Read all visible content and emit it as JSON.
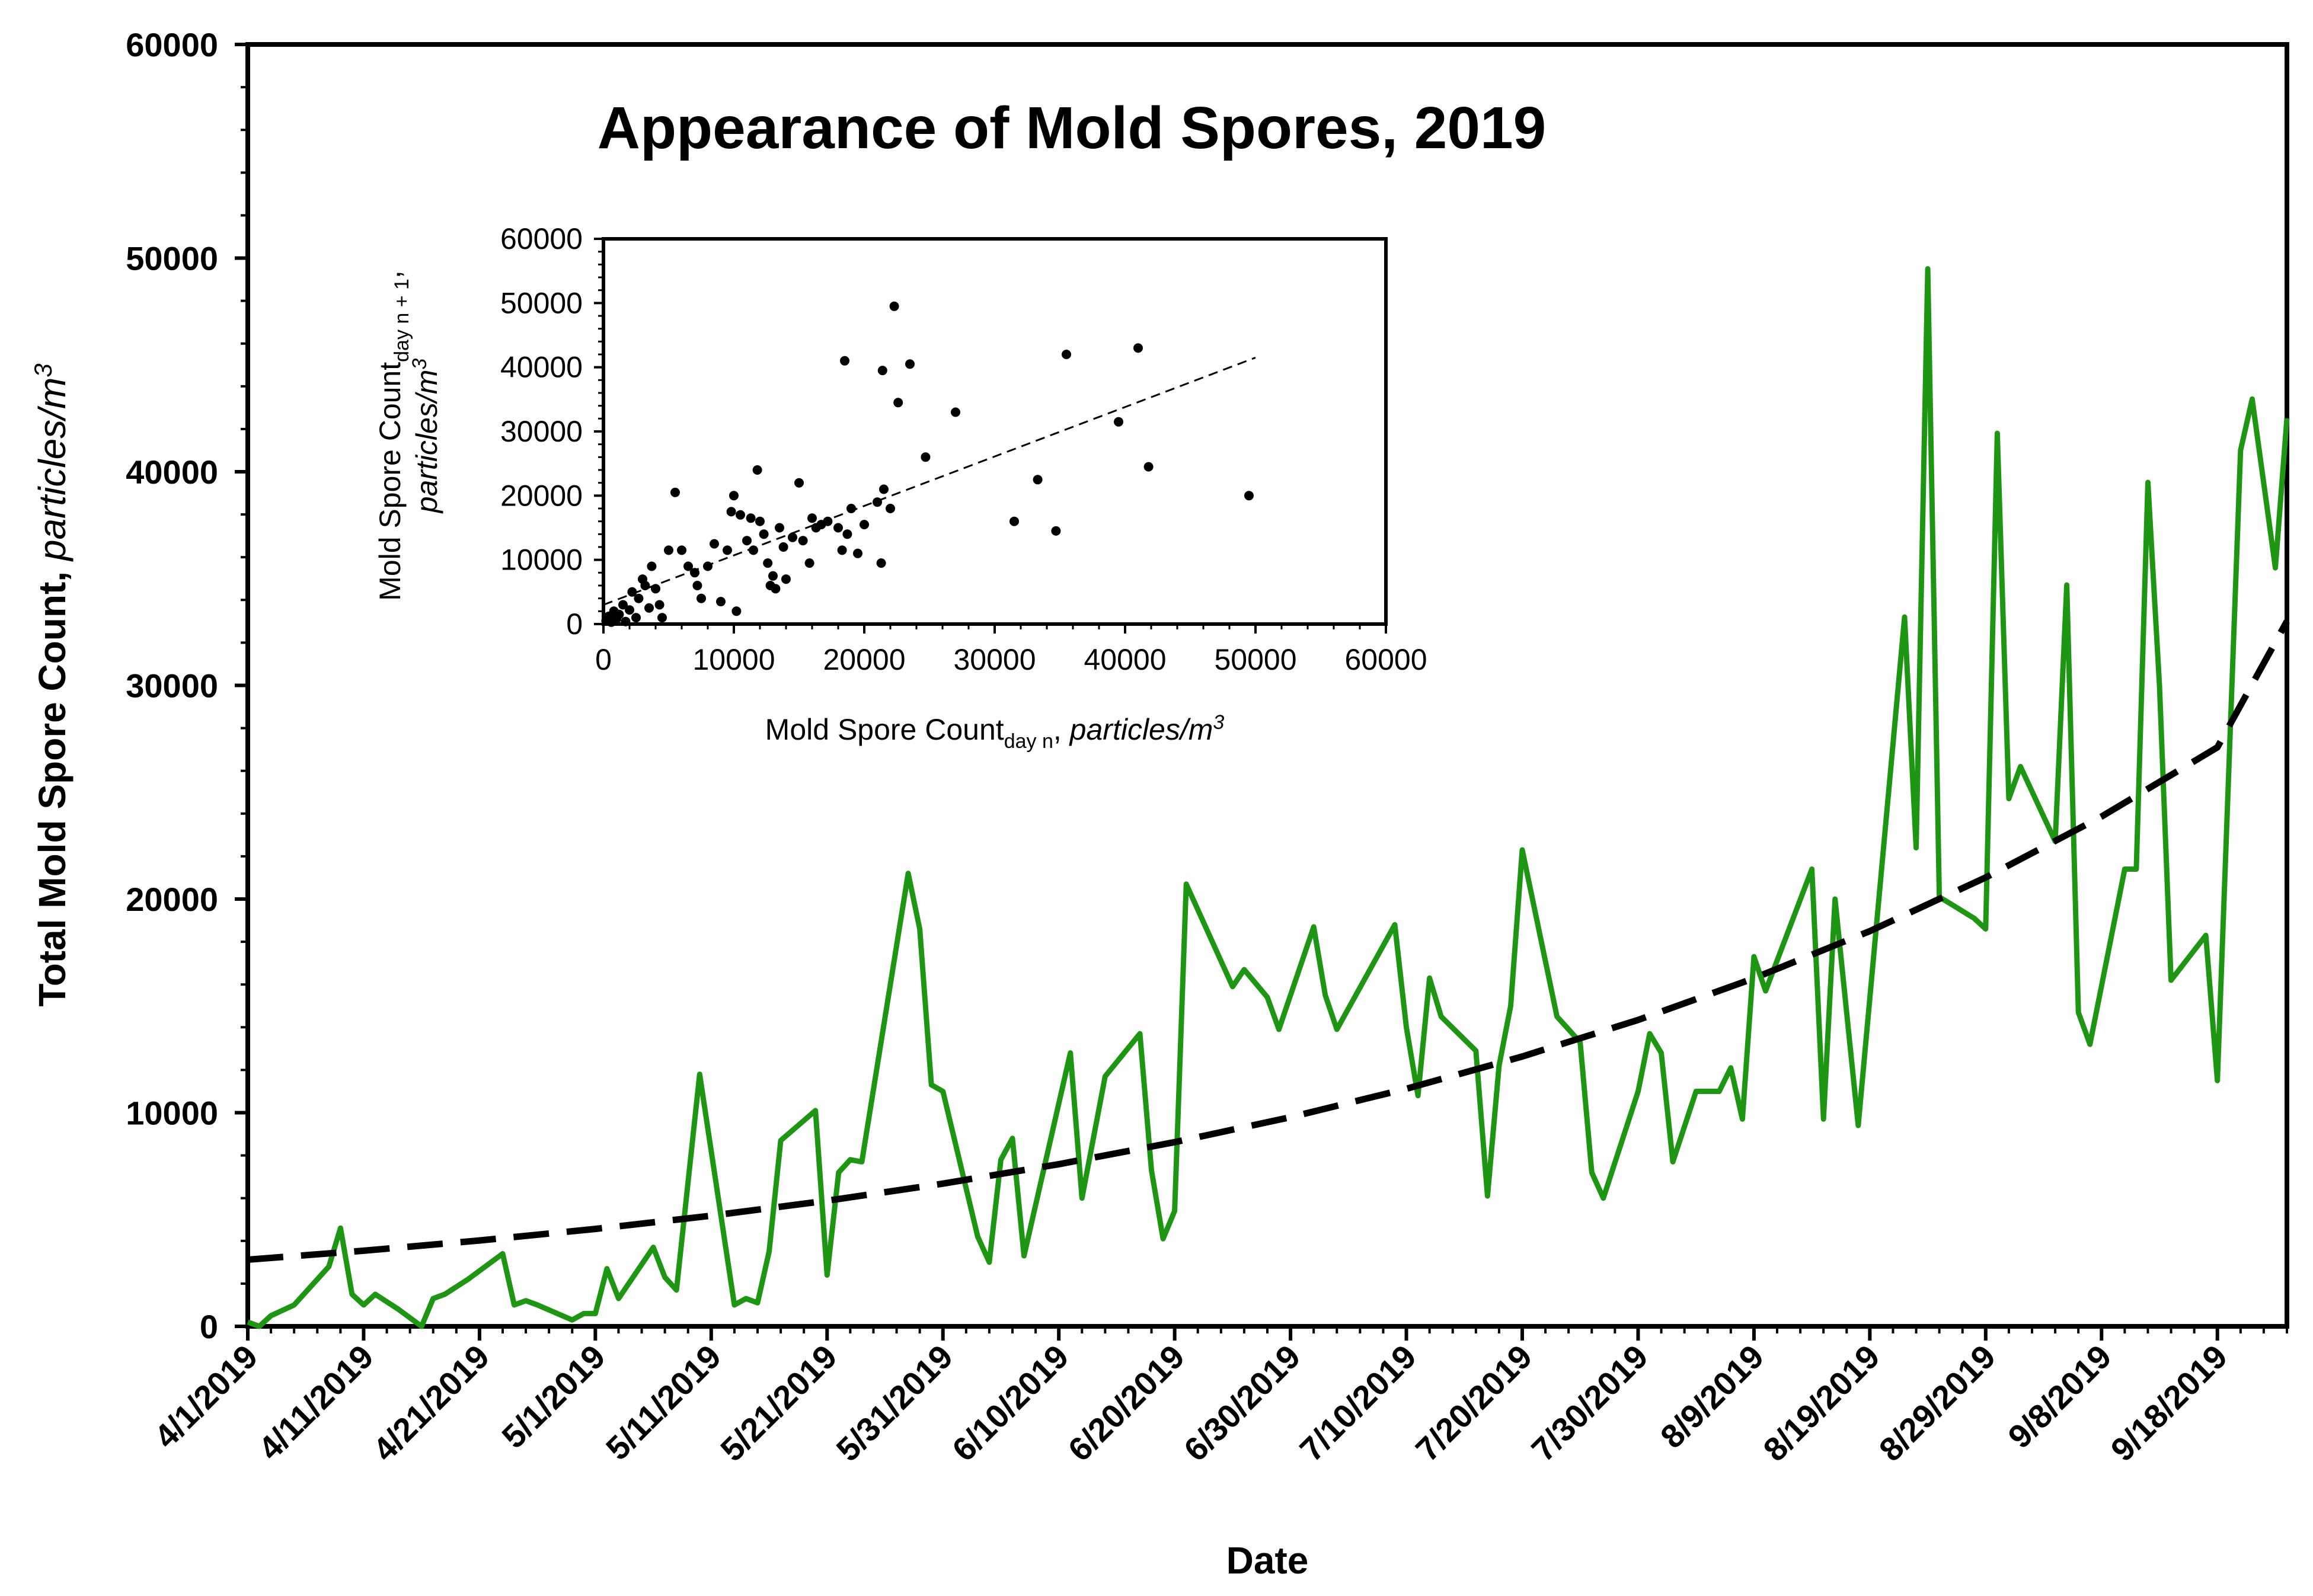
{
  "chart_data": [
    {
      "type": "line",
      "title": "Appearance of Mold Spores, 2019",
      "xlabel": "Date",
      "ylabel": "Total Mold Spore Count,",
      "ylabel_unit": "particles/m",
      "ylabel_unit_sup": "3",
      "ylim": [
        0,
        60000
      ],
      "yticks": [
        "0",
        "10000",
        "20000",
        "30000",
        "40000",
        "50000",
        "60000"
      ],
      "xlim": [
        "2019-04-01",
        "2019-09-24"
      ],
      "xticks": [
        "4/1/2019",
        "4/11/2019",
        "4/21/2019",
        "5/1/2019",
        "5/11/2019",
        "5/21/2019",
        "5/31/2019",
        "6/10/2019",
        "6/20/2019",
        "6/30/2019",
        "7/10/2019",
        "7/20/2019",
        "7/30/2019",
        "8/9/2019",
        "8/19/2019",
        "8/29/2019",
        "9/8/2019",
        "9/18/2019"
      ],
      "grid": false,
      "colors": {
        "series": "#1e9614",
        "trend": "#000000",
        "axis": "#000000"
      },
      "series": [
        {
          "style": "solid",
          "points": [
            [
              "2019-04-01",
              200
            ],
            [
              "2019-04-02",
              0
            ],
            [
              "2019-04-03",
              500
            ],
            [
              "2019-04-05",
              1000
            ],
            [
              "2019-04-08",
              2800
            ],
            [
              "2019-04-09",
              4600
            ],
            [
              "2019-04-10",
              1500
            ],
            [
              "2019-04-11",
              1000
            ],
            [
              "2019-04-12",
              1500
            ],
            [
              "2019-04-14",
              800
            ],
            [
              "2019-04-16",
              0
            ],
            [
              "2019-04-17",
              1300
            ],
            [
              "2019-04-18",
              1500
            ],
            [
              "2019-04-20",
              2200
            ],
            [
              "2019-04-23",
              3400
            ],
            [
              "2019-04-24",
              1000
            ],
            [
              "2019-04-25",
              1200
            ],
            [
              "2019-04-26",
              1000
            ],
            [
              "2019-04-29",
              300
            ],
            [
              "2019-04-30",
              600
            ],
            [
              "2019-05-01",
              600
            ],
            [
              "2019-05-02",
              2700
            ],
            [
              "2019-05-03",
              1300
            ],
            [
              "2019-05-06",
              3700
            ],
            [
              "2019-05-07",
              2300
            ],
            [
              "2019-05-08",
              1700
            ],
            [
              "2019-05-10",
              11800
            ],
            [
              "2019-05-13",
              1000
            ],
            [
              "2019-05-14",
              1300
            ],
            [
              "2019-05-15",
              1100
            ],
            [
              "2019-05-16",
              3500
            ],
            [
              "2019-05-17",
              8700
            ],
            [
              "2019-05-20",
              10100
            ],
            [
              "2019-05-21",
              2400
            ],
            [
              "2019-05-22",
              7200
            ],
            [
              "2019-05-23",
              7800
            ],
            [
              "2019-05-24",
              7700
            ],
            [
              "2019-05-28",
              21200
            ],
            [
              "2019-05-29",
              18600
            ],
            [
              "2019-05-30",
              11300
            ],
            [
              "2019-05-31",
              11000
            ],
            [
              "2019-06-03",
              4200
            ],
            [
              "2019-06-04",
              3000
            ],
            [
              "2019-06-05",
              7800
            ],
            [
              "2019-06-06",
              8800
            ],
            [
              "2019-06-07",
              3300
            ],
            [
              "2019-06-11",
              12800
            ],
            [
              "2019-06-12",
              6000
            ],
            [
              "2019-06-14",
              11700
            ],
            [
              "2019-06-17",
              13700
            ],
            [
              "2019-06-18",
              7300
            ],
            [
              "2019-06-19",
              4100
            ],
            [
              "2019-06-20",
              5400
            ],
            [
              "2019-06-21",
              20700
            ],
            [
              "2019-06-25",
              15900
            ],
            [
              "2019-06-26",
              16700
            ],
            [
              "2019-06-28",
              15400
            ],
            [
              "2019-06-29",
              13900
            ],
            [
              "2019-07-02",
              18700
            ],
            [
              "2019-07-03",
              15500
            ],
            [
              "2019-07-04",
              13900
            ],
            [
              "2019-07-09",
              18800
            ],
            [
              "2019-07-10",
              14000
            ],
            [
              "2019-07-11",
              10800
            ],
            [
              "2019-07-12",
              16300
            ],
            [
              "2019-07-13",
              14500
            ],
            [
              "2019-07-16",
              12900
            ],
            [
              "2019-07-17",
              6100
            ],
            [
              "2019-07-18",
              12200
            ],
            [
              "2019-07-19",
              15000
            ],
            [
              "2019-07-20",
              22300
            ],
            [
              "2019-07-23",
              14500
            ],
            [
              "2019-07-25",
              13300
            ],
            [
              "2019-07-26",
              7200
            ],
            [
              "2019-07-27",
              6000
            ],
            [
              "2019-07-30",
              11000
            ],
            [
              "2019-07-31",
              13700
            ],
            [
              "2019-08-01",
              12800
            ],
            [
              "2019-08-02",
              7700
            ],
            [
              "2019-08-04",
              11000
            ],
            [
              "2019-08-06",
              11000
            ],
            [
              "2019-08-07",
              12100
            ],
            [
              "2019-08-08",
              9700
            ],
            [
              "2019-08-09",
              17300
            ],
            [
              "2019-08-10",
              15700
            ],
            [
              "2019-08-14",
              21400
            ],
            [
              "2019-08-15",
              9700
            ],
            [
              "2019-08-16",
              20000
            ],
            [
              "2019-08-18",
              9400
            ],
            [
              "2019-08-22",
              33200
            ],
            [
              "2019-08-23",
              22400
            ],
            [
              "2019-08-24",
              49500
            ],
            [
              "2019-08-25",
              20100
            ],
            [
              "2019-08-28",
              19100
            ],
            [
              "2019-08-29",
              18600
            ],
            [
              "2019-08-30",
              41800
            ],
            [
              "2019-08-31",
              24700
            ],
            [
              "2019-09-01",
              26200
            ],
            [
              "2019-09-04",
              22700
            ],
            [
              "2019-09-05",
              34700
            ],
            [
              "2019-09-06",
              14700
            ],
            [
              "2019-09-07",
              13200
            ],
            [
              "2019-09-10",
              21400
            ],
            [
              "2019-09-11",
              21400
            ],
            [
              "2019-09-12",
              39500
            ],
            [
              "2019-09-13",
              30000
            ],
            [
              "2019-09-14",
              16200
            ],
            [
              "2019-09-17",
              18300
            ],
            [
              "2019-09-18",
              11500
            ],
            [
              "2019-09-20",
              41000
            ],
            [
              "2019-09-21",
              43400
            ],
            [
              "2019-09-23",
              35500
            ],
            [
              "2019-09-24",
              42500
            ]
          ]
        },
        {
          "style": "dashed",
          "points": [
            [
              "2019-04-01",
              3120
            ],
            [
              "2019-04-11",
              3540
            ],
            [
              "2019-04-21",
              4020
            ],
            [
              "2019-05-01",
              4560
            ],
            [
              "2019-05-11",
              5180
            ],
            [
              "2019-05-21",
              5880
            ],
            [
              "2019-05-31",
              6680
            ],
            [
              "2019-06-10",
              7590
            ],
            [
              "2019-06-20",
              8620
            ],
            [
              "2019-06-30",
              9790
            ],
            [
              "2019-07-10",
              11120
            ],
            [
              "2019-07-20",
              12630
            ],
            [
              "2019-07-30",
              14340
            ],
            [
              "2019-08-09",
              16290
            ],
            [
              "2019-08-19",
              18500
            ],
            [
              "2019-08-29",
              21010
            ],
            [
              "2019-09-08",
              23860
            ],
            [
              "2019-09-18",
              27100
            ],
            [
              "2019-09-24",
              33000
            ]
          ]
        }
      ]
    },
    {
      "type": "scatter",
      "xlabel": "Mold Spore Count",
      "xlabel_sub": "day n",
      "xlabel_unit": "particles/m",
      "xlabel_unit_sup": "3",
      "ylabel": "Mold Spore Count",
      "ylabel_sub": "day n + 1",
      "ylabel_unit": "particles/m",
      "ylabel_unit_sup": "3",
      "xlim": [
        0,
        60000
      ],
      "ylim": [
        0,
        60000
      ],
      "xticks": [
        "0",
        "10000",
        "20000",
        "30000",
        "40000",
        "50000",
        "60000"
      ],
      "yticks": [
        "0",
        "10000",
        "20000",
        "30000",
        "40000",
        "50000",
        "60000"
      ],
      "grid": false,
      "colors": {
        "points": "#000000",
        "trend": "#000000"
      },
      "trendline": [
        [
          0,
          3000
        ],
        [
          50000,
          41500
        ]
      ],
      "points": [
        [
          200,
          500
        ],
        [
          400,
          1200
        ],
        [
          600,
          300
        ],
        [
          800,
          2000
        ],
        [
          1000,
          800
        ],
        [
          1200,
          1500
        ],
        [
          1500,
          3000
        ],
        [
          1700,
          400
        ],
        [
          2000,
          2200
        ],
        [
          2200,
          5000
        ],
        [
          2500,
          1000
        ],
        [
          2700,
          4000
        ],
        [
          3000,
          7000
        ],
        [
          3200,
          6000
        ],
        [
          3500,
          2500
        ],
        [
          3700,
          9000
        ],
        [
          4000,
          5500
        ],
        [
          4300,
          3000
        ],
        [
          4500,
          1000
        ],
        [
          5000,
          11500
        ],
        [
          5500,
          20500
        ],
        [
          6000,
          11500
        ],
        [
          6500,
          9000
        ],
        [
          7000,
          8000
        ],
        [
          7200,
          6000
        ],
        [
          7500,
          4000
        ],
        [
          8000,
          9000
        ],
        [
          8500,
          12500
        ],
        [
          9000,
          3500
        ],
        [
          9500,
          11500
        ],
        [
          9800,
          17500
        ],
        [
          10000,
          20000
        ],
        [
          10200,
          2000
        ],
        [
          10500,
          17000
        ],
        [
          11000,
          13000
        ],
        [
          11300,
          16500
        ],
        [
          11500,
          11500
        ],
        [
          11800,
          24000
        ],
        [
          12000,
          16000
        ],
        [
          12300,
          14000
        ],
        [
          12600,
          9500
        ],
        [
          12800,
          6000
        ],
        [
          13000,
          7500
        ],
        [
          13200,
          5500
        ],
        [
          13500,
          15000
        ],
        [
          13800,
          12000
        ],
        [
          14000,
          7000
        ],
        [
          14500,
          13500
        ],
        [
          15000,
          22000
        ],
        [
          15300,
          13000
        ],
        [
          15800,
          9500
        ],
        [
          16000,
          16500
        ],
        [
          16300,
          15000
        ],
        [
          16700,
          15500
        ],
        [
          17200,
          16000
        ],
        [
          18000,
          15000
        ],
        [
          18300,
          11500
        ],
        [
          18500,
          41000
        ],
        [
          18700,
          14000
        ],
        [
          19000,
          18000
        ],
        [
          19500,
          11000
        ],
        [
          20000,
          15500
        ],
        [
          21000,
          19000
        ],
        [
          21300,
          9500
        ],
        [
          21400,
          39500
        ],
        [
          21500,
          21000
        ],
        [
          22000,
          18000
        ],
        [
          22300,
          49500
        ],
        [
          22600,
          34500
        ],
        [
          23500,
          40500
        ],
        [
          24700,
          26000
        ],
        [
          27000,
          33000
        ],
        [
          31500,
          16000
        ],
        [
          33300,
          22500
        ],
        [
          34700,
          14500
        ],
        [
          35500,
          42000
        ],
        [
          39500,
          31500
        ],
        [
          41000,
          43000
        ],
        [
          41800,
          24500
        ],
        [
          49500,
          20000
        ]
      ]
    }
  ]
}
